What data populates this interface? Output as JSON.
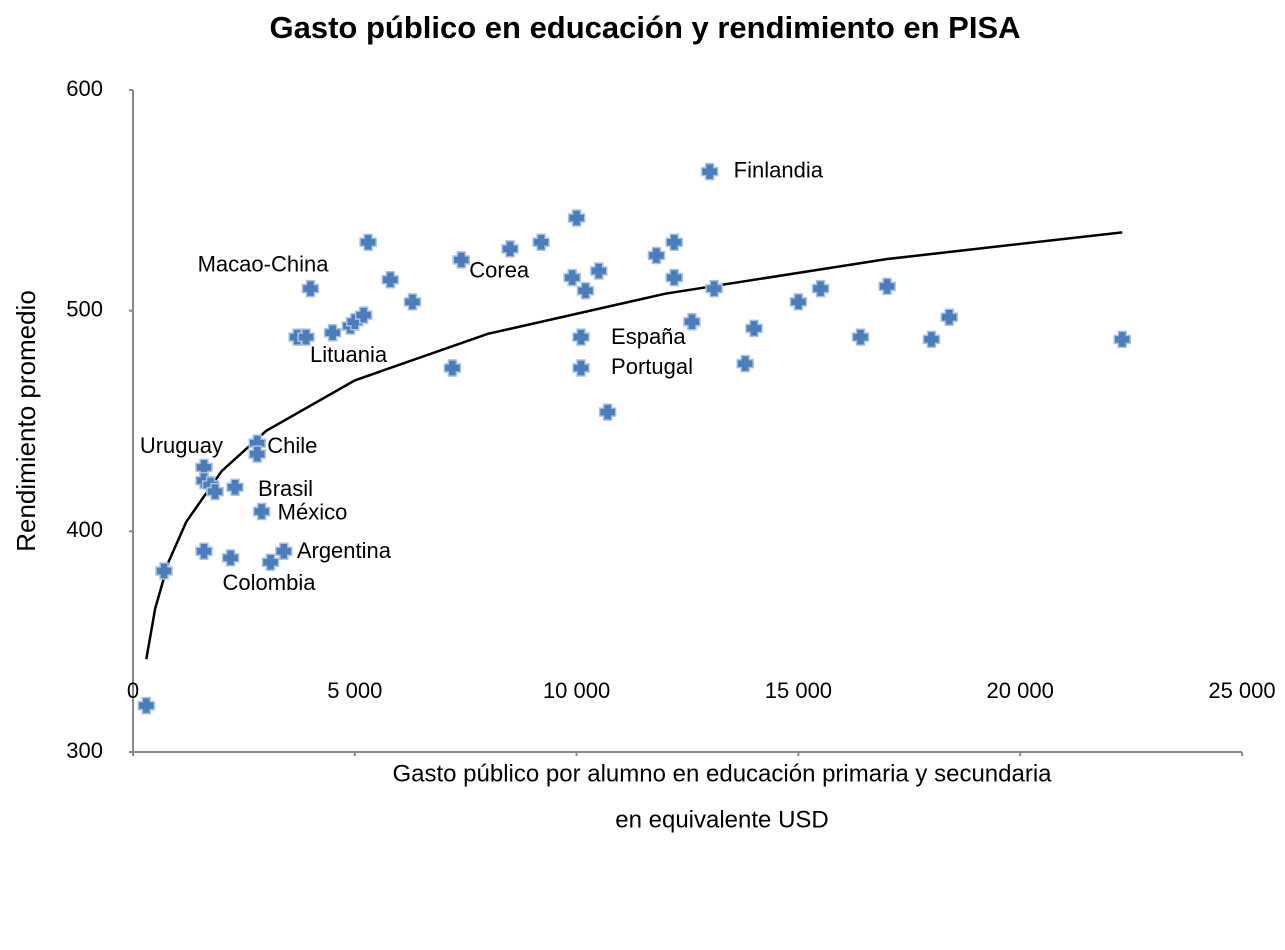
{
  "chart_data": {
    "type": "scatter",
    "title": "Gasto público en educación y rendimiento en PISA",
    "xlabel": [
      "Gasto público por alumno en educación primaria y secundaria",
      "en equivalente USD"
    ],
    "ylabel": "Rendimiento promedio",
    "color": "#4a7ebb",
    "x": [
      300,
      700,
      1600,
      1600,
      1750,
      1850,
      2300,
      1600,
      2200,
      2800,
      2800,
      2900,
      3100,
      3400,
      3700,
      3900,
      4000,
      4500,
      4900,
      5000,
      5200,
      5300,
      5800,
      6300,
      7200,
      7400,
      8500,
      9200,
      9900,
      10000,
      10200,
      10100,
      10100,
      10500,
      10700,
      11800,
      12200,
      12200,
      12600,
      13000,
      13100,
      13800,
      14000,
      15000,
      15500,
      16400,
      17000,
      18000,
      18400,
      22300
    ],
    "values": [
      321,
      382,
      429,
      423,
      421,
      418,
      420,
      391,
      388,
      440,
      435,
      409,
      386,
      391,
      488,
      488,
      510,
      490,
      493,
      495,
      498,
      531,
      514,
      504,
      474,
      523,
      528,
      531,
      515,
      542,
      509,
      488,
      474,
      518,
      454,
      525,
      531,
      515,
      495,
      563,
      510,
      476,
      492,
      504,
      510,
      488,
      511,
      487,
      497,
      487
    ],
    "labels": [
      null,
      null,
      "Uruguay",
      null,
      null,
      null,
      "Brasil",
      null,
      null,
      "Chile",
      null,
      "México",
      "Colombia",
      "Argentina",
      null,
      "Lituania",
      "Macao-China",
      null,
      null,
      null,
      null,
      null,
      null,
      null,
      null,
      "Corea",
      null,
      null,
      null,
      null,
      null,
      "España",
      "Portugal",
      null,
      null,
      null,
      null,
      null,
      null,
      "Finlandia",
      null,
      null,
      null,
      null,
      null,
      null,
      null,
      null,
      null,
      null
    ],
    "trendline": {
      "color": "#000000",
      "x": [
        300,
        500,
        800,
        1200,
        2000,
        3000,
        5000,
        8000,
        12000,
        17000,
        22300
      ],
      "values": [
        342.1,
        365.0,
        386.1,
        404.3,
        427.3,
        445.5,
        468.4,
        489.5,
        507.7,
        523.4,
        535.5
      ]
    },
    "xlim": [
      0,
      25000
    ],
    "xticks": [
      0,
      {
        "value": 5000,
        "label": "5 000"
      },
      {
        "value": 10000,
        "label": "10 000"
      },
      {
        "value": 15000,
        "label": "15 000"
      },
      {
        "value": 20000,
        "label": "20 000"
      },
      {
        "value": 25000,
        "label": "25 000"
      }
    ],
    "ylim": [
      300,
      600
    ],
    "yticks": [
      300,
      400,
      500,
      600
    ],
    "grid": false
  }
}
